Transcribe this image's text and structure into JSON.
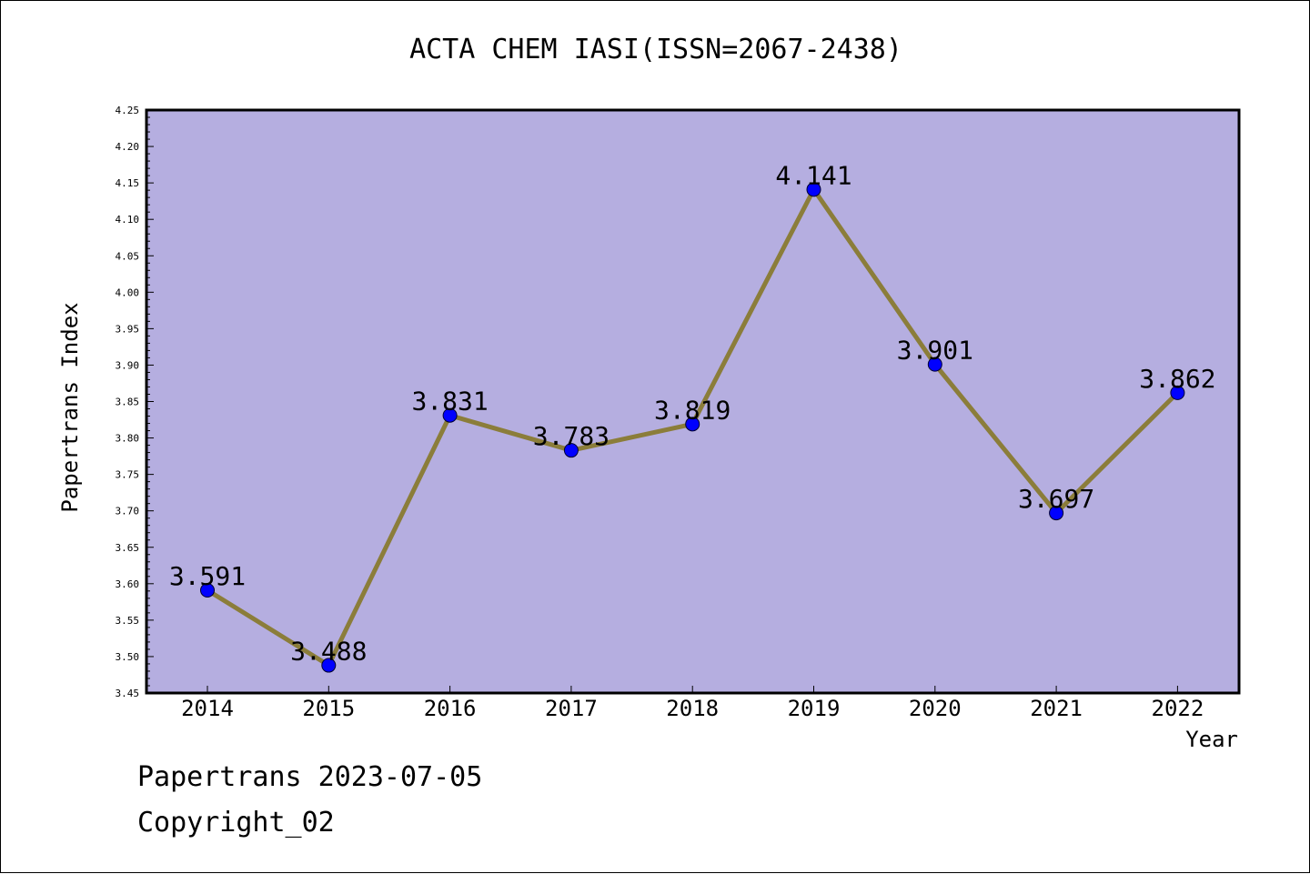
{
  "chart_data": {
    "type": "line",
    "title": "ACTA CHEM IASI(ISSN=2067-2438)",
    "xlabel": "Year",
    "ylabel": "Papertrans Index",
    "categories": [
      "2014",
      "2015",
      "2016",
      "2017",
      "2018",
      "2019",
      "2020",
      "2021",
      "2022"
    ],
    "values": [
      3.591,
      3.488,
      3.831,
      3.783,
      3.819,
      4.141,
      3.901,
      3.697,
      3.862
    ],
    "data_labels": [
      "3.591",
      "3.488",
      "3.831",
      "3.783",
      "3.819",
      "4.141",
      "3.901",
      "3.697",
      "3.862"
    ],
    "ylim": [
      3.45,
      4.25
    ],
    "yticks": [
      "3.45",
      "3.50",
      "3.55",
      "3.60",
      "3.65",
      "3.70",
      "3.75",
      "3.80",
      "3.85",
      "3.90",
      "3.95",
      "4.00",
      "4.05",
      "4.10",
      "4.15",
      "4.20",
      "4.25"
    ],
    "grid": false,
    "legend": "none",
    "colors": {
      "plot_background": "#b5aee0",
      "line": "#8b7d3a",
      "marker": "#0000ff",
      "frame": "#000000"
    }
  },
  "footer": {
    "line1": "Papertrans 2023-07-05",
    "line2": "Copyright_02"
  }
}
